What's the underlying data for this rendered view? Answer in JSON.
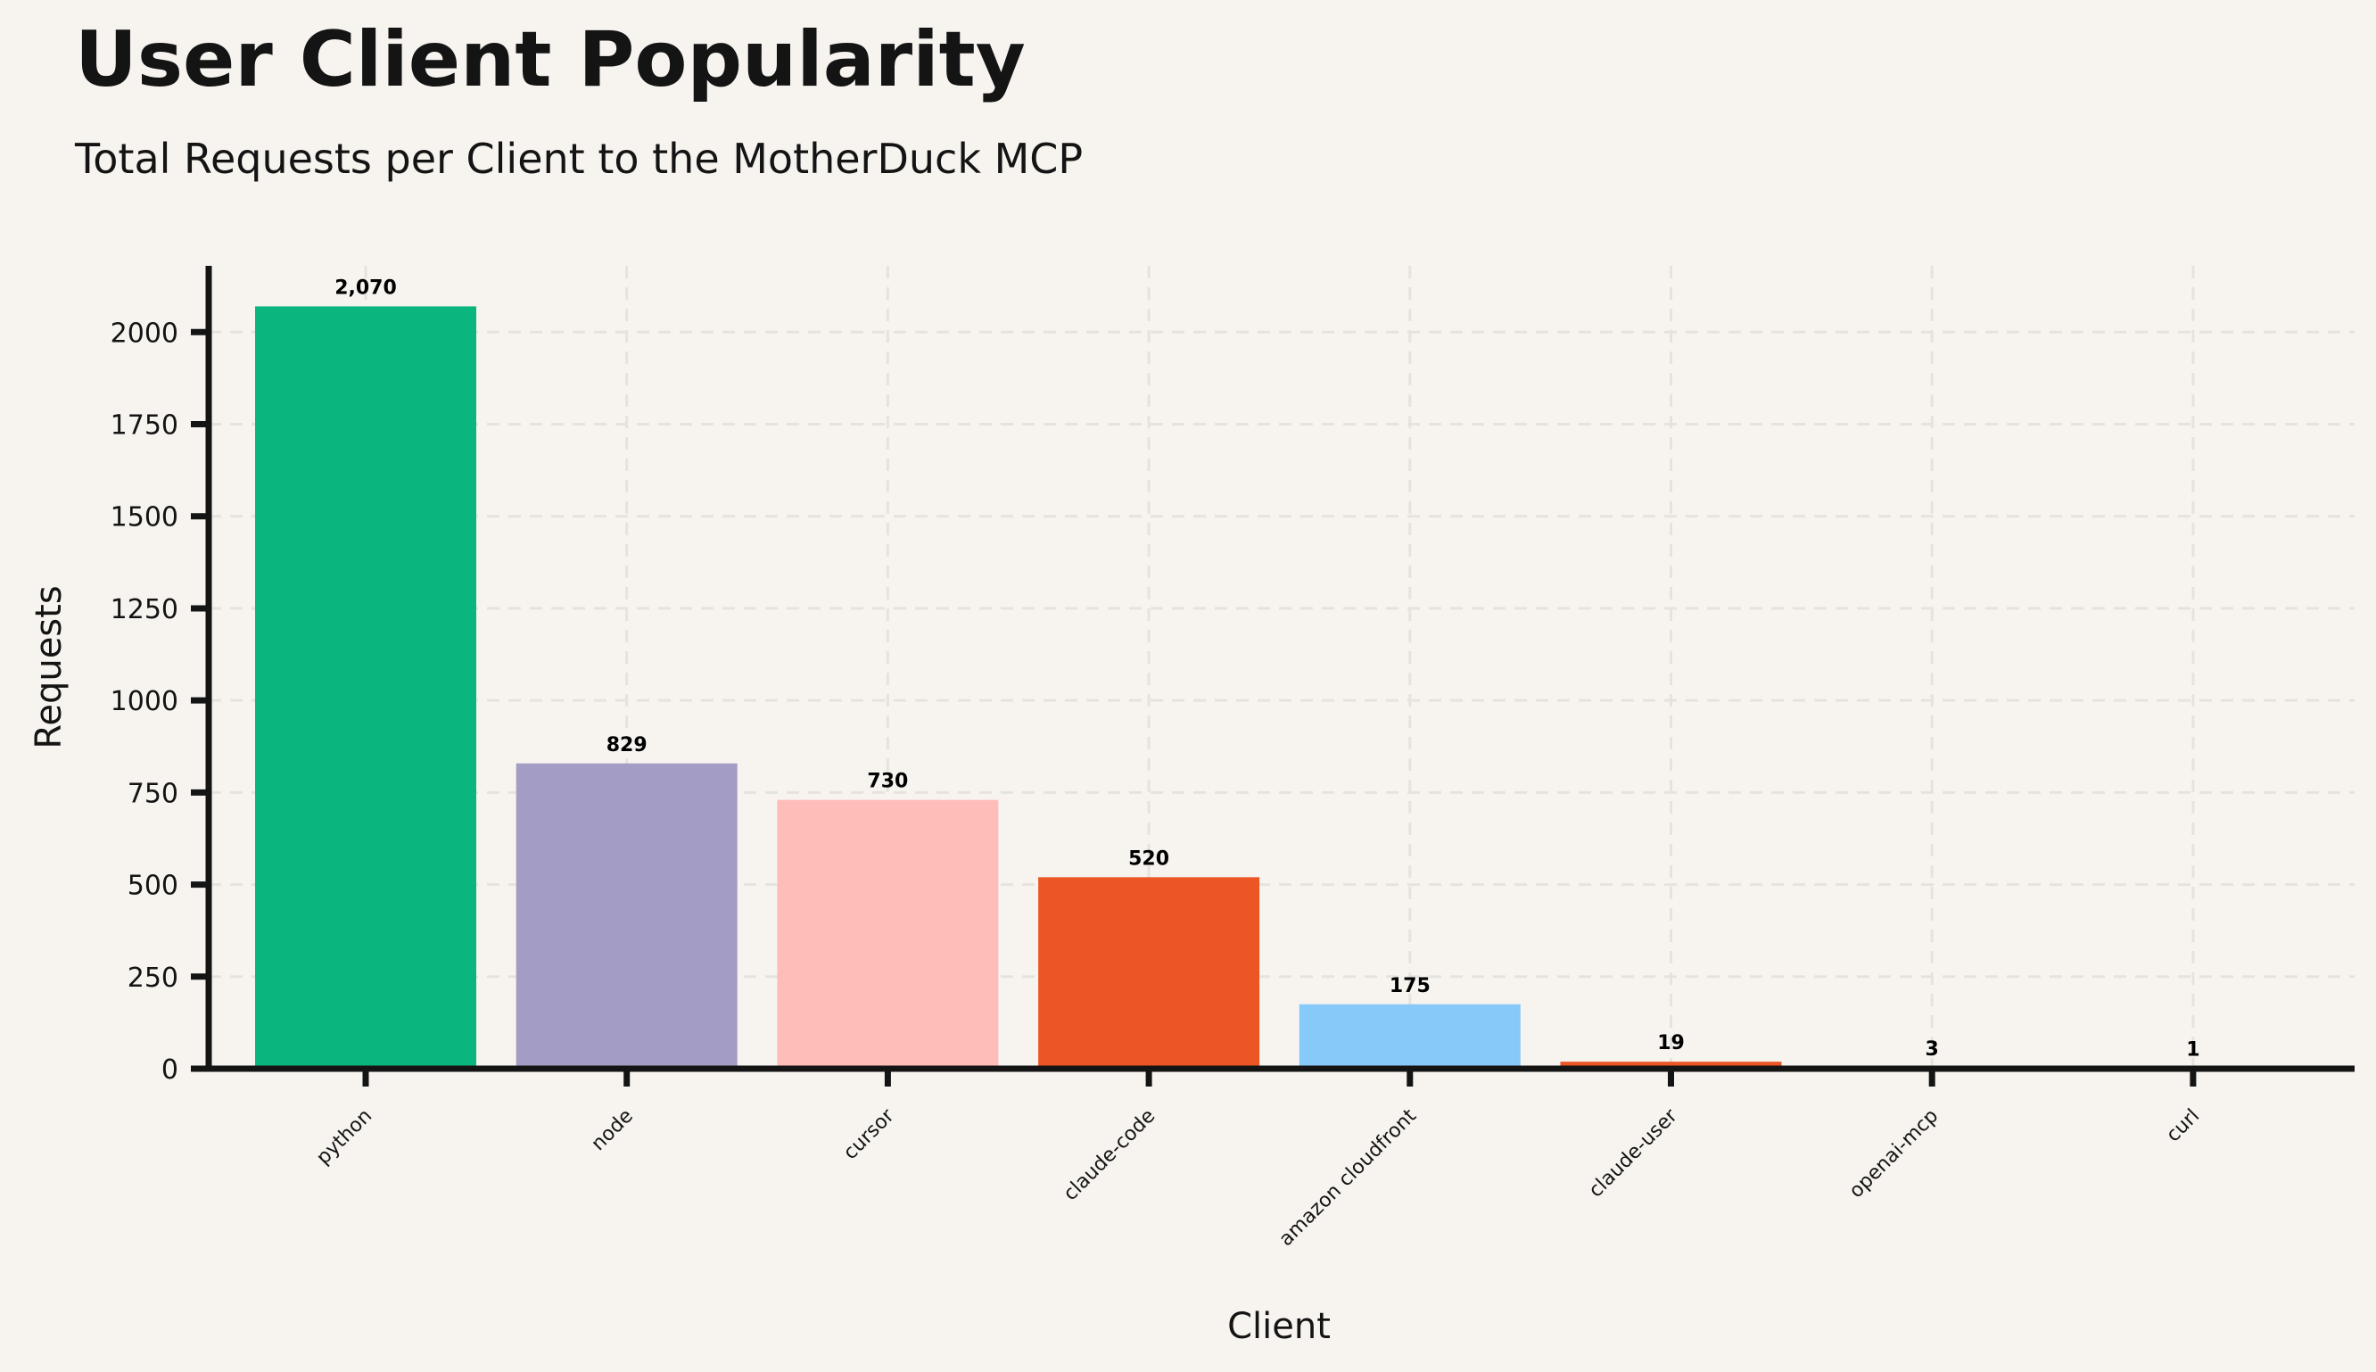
{
  "chart_data": {
    "type": "bar",
    "title": "User Client Popularity",
    "subtitle": "Total Requests per Client to the MotherDuck MCP",
    "xlabel": "Client",
    "ylabel": "Requests",
    "categories": [
      "python",
      "node",
      "cursor",
      "claude-code",
      "amazon cloudfront",
      "claude-user",
      "openai-mcp",
      "curl"
    ],
    "values": [
      2070,
      829,
      730,
      520,
      175,
      19,
      3,
      1
    ],
    "data_labels": [
      "2,070",
      "829",
      "730",
      "520",
      "175",
      "19",
      "3",
      "1"
    ],
    "colors": [
      "#0bb67e",
      "#a39cc5",
      "#ffbdba",
      "#ec5625",
      "#87c9f9",
      "#ec5625",
      "#87c9f9",
      "#87c9f9"
    ],
    "ylim": [
      0,
      2180
    ],
    "yticks": [
      0,
      250,
      500,
      750,
      1000,
      1250,
      1500,
      1750,
      2000
    ],
    "grid": true,
    "legend": "none"
  }
}
